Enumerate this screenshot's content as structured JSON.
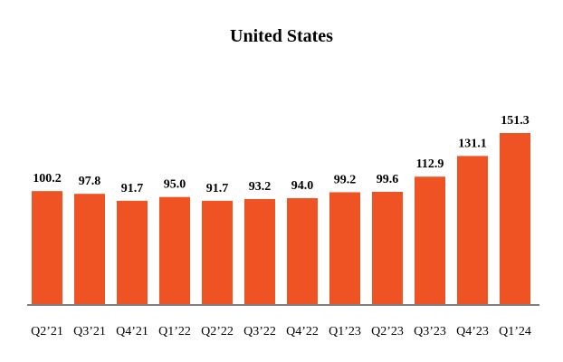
{
  "chart_data": {
    "type": "bar",
    "title": "United States",
    "xlabel": "",
    "ylabel": "",
    "categories": [
      "Q2’21",
      "Q3’21",
      "Q4’21",
      "Q1’22",
      "Q2’22",
      "Q3’22",
      "Q4’22",
      "Q1’23",
      "Q2’23",
      "Q3’23",
      "Q4’23",
      "Q1’24"
    ],
    "values": [
      100.2,
      97.8,
      91.7,
      95.0,
      91.7,
      93.2,
      94.0,
      99.2,
      99.6,
      112.9,
      131.1,
      151.3
    ],
    "value_labels": [
      "100.2",
      "97.8",
      "91.7",
      "95.0",
      "91.7",
      "93.2",
      "94.0",
      "99.2",
      "99.6",
      "112.9",
      "131.1",
      "151.3"
    ],
    "ylim": [
      0,
      160
    ],
    "grid": false,
    "legend": "none",
    "colors": {
      "bar": "#F05323",
      "axis": "#7f7f7f",
      "text": "#000000"
    }
  }
}
